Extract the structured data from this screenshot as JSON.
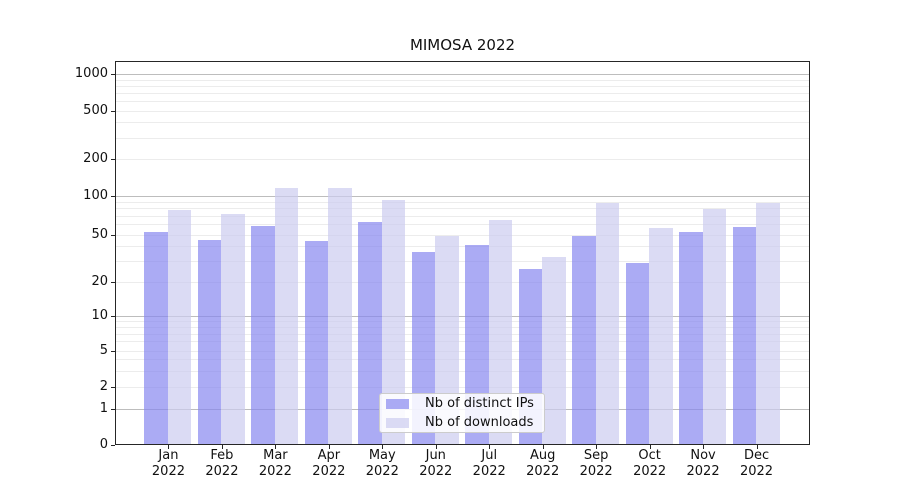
{
  "chart_data": {
    "type": "bar",
    "title": "MIMOSA 2022",
    "months": [
      "Jan",
      "Feb",
      "Mar",
      "Apr",
      "May",
      "Jun",
      "Jul",
      "Aug",
      "Sep",
      "Oct",
      "Nov",
      "Dec"
    ],
    "x_tick_year": "2022",
    "series": [
      {
        "name": "Nb of distinct IPs",
        "color": "#8888f0",
        "values": [
          51,
          44,
          57,
          43,
          61,
          35,
          40,
          25,
          48,
          28,
          51,
          56
        ]
      },
      {
        "name": "Nb of downloads",
        "color": "#ccccf0",
        "values": [
          77,
          71,
          113,
          115,
          92,
          48,
          64,
          32,
          86,
          55,
          78,
          87
        ]
      }
    ],
    "y_ticks": [
      0,
      1,
      2,
      5,
      10,
      20,
      50,
      100,
      200,
      500,
      1000
    ],
    "y_scale": "symlog",
    "grid": "on",
    "legend_position": "lower-center",
    "bar_alpha": 0.7,
    "colors": {
      "grid_major": "#bdbdbd",
      "grid_minor": "#ececec",
      "spine": "#262626",
      "text": "#111111",
      "legend_border": "#cccccc"
    }
  }
}
